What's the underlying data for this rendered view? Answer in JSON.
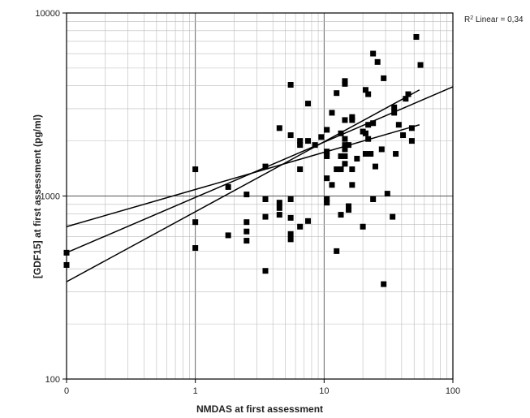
{
  "chart_data": {
    "type": "scatter",
    "xlabel": "NMDAS at first assessment",
    "ylabel": "[GDF15] at first assessment (pg/ml)",
    "annotation": {
      "prefix": "R",
      "sup": "2",
      "suffix": " Linear = 0,34"
    },
    "x_scale": "log",
    "y_scale": "log",
    "xlim": [
      0,
      100
    ],
    "ylim": [
      100,
      10000
    ],
    "x_ticks": [
      {
        "value": 0,
        "label": "0"
      },
      {
        "value": 1,
        "label": "1"
      },
      {
        "value": 10,
        "label": "10"
      },
      {
        "value": 100,
        "label": "100"
      }
    ],
    "y_ticks": [
      {
        "value": 100,
        "label": "100"
      },
      {
        "value": 1000,
        "label": "1000"
      },
      {
        "value": 10000,
        "label": "10000"
      }
    ],
    "grid": true,
    "points": [
      [
        0,
        490
      ],
      [
        0,
        420
      ],
      [
        1,
        1400
      ],
      [
        1,
        720
      ],
      [
        1,
        520
      ],
      [
        1.8,
        1120
      ],
      [
        1.8,
        610
      ],
      [
        2.5,
        1020
      ],
      [
        2.5,
        720
      ],
      [
        2.5,
        640
      ],
      [
        2.5,
        570
      ],
      [
        3.5,
        1450
      ],
      [
        3.5,
        960
      ],
      [
        3.5,
        770
      ],
      [
        3.5,
        390
      ],
      [
        4.5,
        2350
      ],
      [
        4.5,
        920
      ],
      [
        4.5,
        860
      ],
      [
        4.5,
        790
      ],
      [
        5.5,
        4050
      ],
      [
        5.5,
        2150
      ],
      [
        5.5,
        960
      ],
      [
        5.5,
        760
      ],
      [
        5.5,
        620
      ],
      [
        5.5,
        580
      ],
      [
        6.5,
        2000
      ],
      [
        6.5,
        1900
      ],
      [
        6.5,
        1400
      ],
      [
        6.5,
        680
      ],
      [
        7.5,
        3200
      ],
      [
        7.5,
        2000
      ],
      [
        7.5,
        730
      ],
      [
        8.5,
        1900
      ],
      [
        9.5,
        2100
      ],
      [
        10.5,
        2300
      ],
      [
        10.5,
        1750
      ],
      [
        10.5,
        1650
      ],
      [
        10.5,
        1250
      ],
      [
        10.5,
        960
      ],
      [
        10.5,
        920
      ],
      [
        11.5,
        2850
      ],
      [
        11.5,
        1150
      ],
      [
        12.5,
        3650
      ],
      [
        12.5,
        1400
      ],
      [
        12.5,
        500
      ],
      [
        13.5,
        2200
      ],
      [
        13.5,
        1650
      ],
      [
        13.5,
        1400
      ],
      [
        13.5,
        790
      ],
      [
        14.5,
        4250
      ],
      [
        14.5,
        4100
      ],
      [
        14.5,
        2600
      ],
      [
        14.5,
        2050
      ],
      [
        14.5,
        1900
      ],
      [
        14.5,
        1800
      ],
      [
        14.5,
        1650
      ],
      [
        14.5,
        1500
      ],
      [
        15.5,
        1900
      ],
      [
        15.5,
        880
      ],
      [
        15.5,
        840
      ],
      [
        16.5,
        2700
      ],
      [
        16.5,
        2600
      ],
      [
        16.5,
        1400
      ],
      [
        16.5,
        1150
      ],
      [
        18,
        1600
      ],
      [
        20,
        2250
      ],
      [
        20,
        680
      ],
      [
        21,
        3800
      ],
      [
        21,
        2200
      ],
      [
        21,
        1700
      ],
      [
        22,
        3600
      ],
      [
        22,
        2450
      ],
      [
        22,
        2050
      ],
      [
        23,
        1700
      ],
      [
        24,
        6000
      ],
      [
        24,
        2500
      ],
      [
        24,
        960
      ],
      [
        25,
        1450
      ],
      [
        26,
        5400
      ],
      [
        28,
        1800
      ],
      [
        29,
        4400
      ],
      [
        29,
        330
      ],
      [
        31,
        1030
      ],
      [
        34,
        770
      ],
      [
        35,
        3050
      ],
      [
        35,
        2850
      ],
      [
        36,
        1700
      ],
      [
        38,
        2450
      ],
      [
        41,
        2150
      ],
      [
        43,
        3400
      ],
      [
        45,
        3600
      ],
      [
        48,
        2350
      ],
      [
        48,
        2000
      ],
      [
        52,
        7400
      ],
      [
        56,
        5200
      ]
    ],
    "fit_line": {
      "x_start": 0,
      "y_start": 490,
      "x_end": 100,
      "y_end": 3950
    },
    "ci_upper": {
      "x_start": 0,
      "y_start": 680,
      "x_end": 55,
      "y_end": 2450
    },
    "ci_lower": {
      "x_start": 0,
      "y_start": 340,
      "x_end": 55,
      "y_end": 3800
    }
  }
}
